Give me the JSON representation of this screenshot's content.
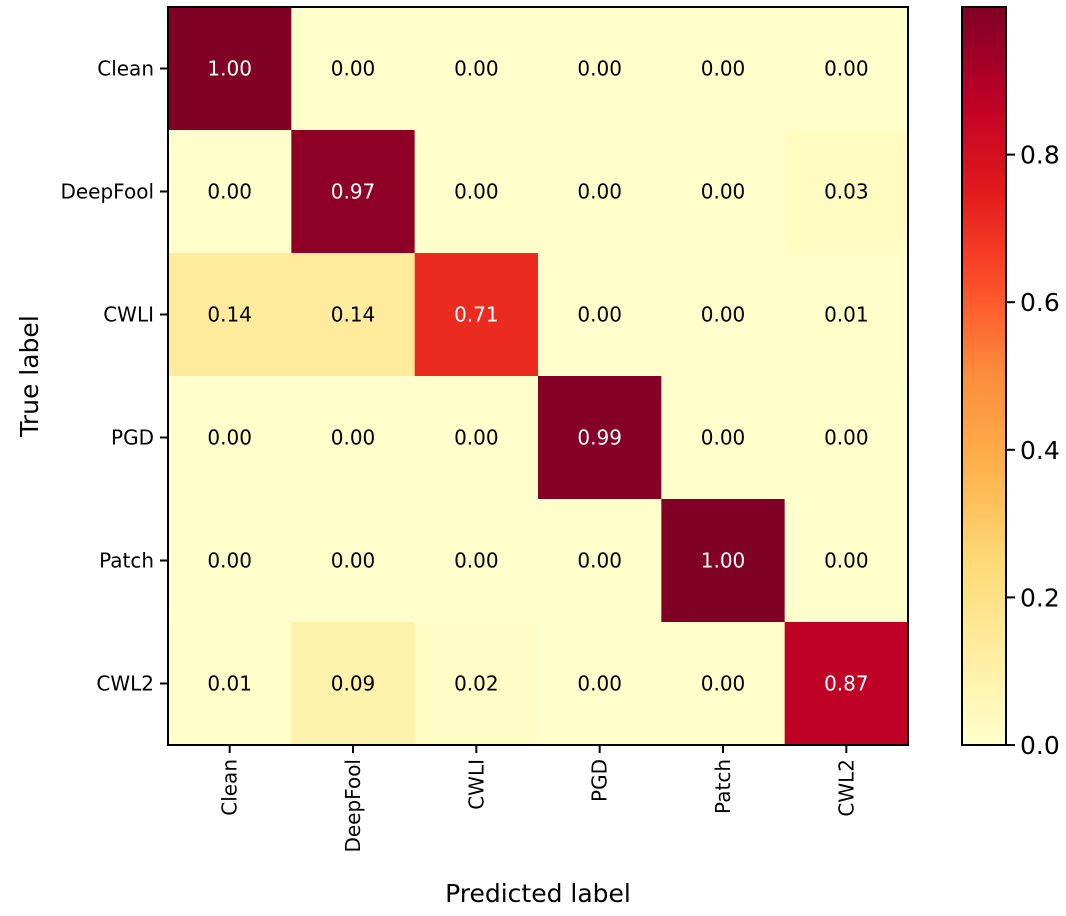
{
  "chart_data": {
    "type": "heatmap",
    "title": "",
    "xlabel": "Predicted label",
    "ylabel": "True label",
    "x_categories": [
      "Clean",
      "DeepFool",
      "CWLI",
      "PGD",
      "Patch",
      "CWL2"
    ],
    "y_categories": [
      "Clean",
      "DeepFool",
      "CWLI",
      "PGD",
      "Patch",
      "CWL2"
    ],
    "values": [
      [
        1.0,
        0.0,
        0.0,
        0.0,
        0.0,
        0.0
      ],
      [
        0.0,
        0.97,
        0.0,
        0.0,
        0.0,
        0.03
      ],
      [
        0.14,
        0.14,
        0.71,
        0.0,
        0.0,
        0.01
      ],
      [
        0.0,
        0.0,
        0.0,
        0.99,
        0.0,
        0.0
      ],
      [
        0.0,
        0.0,
        0.0,
        0.0,
        1.0,
        0.0
      ],
      [
        0.01,
        0.09,
        0.02,
        0.0,
        0.0,
        0.87
      ]
    ],
    "value_format": "0.00",
    "colormap": "YlOrRd",
    "colorbar": {
      "range": [
        0.0,
        1.0
      ],
      "ticks": [
        0.0,
        0.2,
        0.4,
        0.6,
        0.8
      ],
      "tick_labels": [
        "0.0",
        "0.2",
        "0.4",
        "0.6",
        "0.8"
      ]
    },
    "grid": false,
    "colors": {
      "low": "#ffffcc",
      "mid": "#fd8d3c",
      "high": "#800026",
      "dark_text": "#000000",
      "light_text": "#ffffff"
    }
  }
}
